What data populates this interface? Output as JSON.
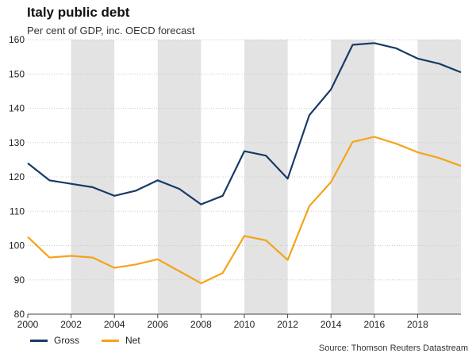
{
  "header": {
    "title": "Italy public debt",
    "subtitle": "Per cent of GDP, inc. OECD forecast"
  },
  "source": "Source: Thomson Reuters Datastream",
  "colors": {
    "gross": "#163b66",
    "net": "#f5a31a",
    "band": "#e3e3e3",
    "grid": "#cccccc"
  },
  "chart_data": {
    "type": "line",
    "title": "Italy public debt",
    "subtitle": "Per cent of GDP, inc. OECD forecast",
    "xlabel": "",
    "ylabel": "",
    "xlim": [
      2000,
      2020
    ],
    "ylim": [
      80,
      160
    ],
    "x_ticks": [
      2000,
      2002,
      2004,
      2006,
      2008,
      2010,
      2012,
      2014,
      2016,
      2018
    ],
    "y_ticks": [
      80,
      90,
      100,
      110,
      120,
      130,
      140,
      150,
      160
    ],
    "shaded_year_bands": [
      [
        2002,
        2004
      ],
      [
        2006,
        2008
      ],
      [
        2010,
        2012
      ],
      [
        2014,
        2016
      ],
      [
        2018,
        2020
      ]
    ],
    "legend_position": "bottom-left",
    "x": [
      2000,
      2001,
      2002,
      2003,
      2004,
      2005,
      2006,
      2007,
      2008,
      2009,
      2010,
      2011,
      2012,
      2013,
      2014,
      2015,
      2016,
      2017,
      2018,
      2019,
      2020
    ],
    "series": [
      {
        "name": "Gross",
        "color": "#163b66",
        "values": [
          124,
          119,
          118,
          117,
          114.5,
          116,
          119,
          116.5,
          112,
          114.5,
          127.5,
          126.2,
          119.5,
          138,
          145.5,
          158.5,
          159,
          157.5,
          154.5,
          153,
          150.5
        ]
      },
      {
        "name": "Net",
        "color": "#f5a31a",
        "values": [
          102.5,
          96.5,
          97,
          96.5,
          93.5,
          94.5,
          96,
          92.5,
          89,
          92,
          102.8,
          101.5,
          95.8,
          111.5,
          118.5,
          130.2,
          131.7,
          129.7,
          127.2,
          125.5,
          123.2
        ]
      }
    ]
  }
}
